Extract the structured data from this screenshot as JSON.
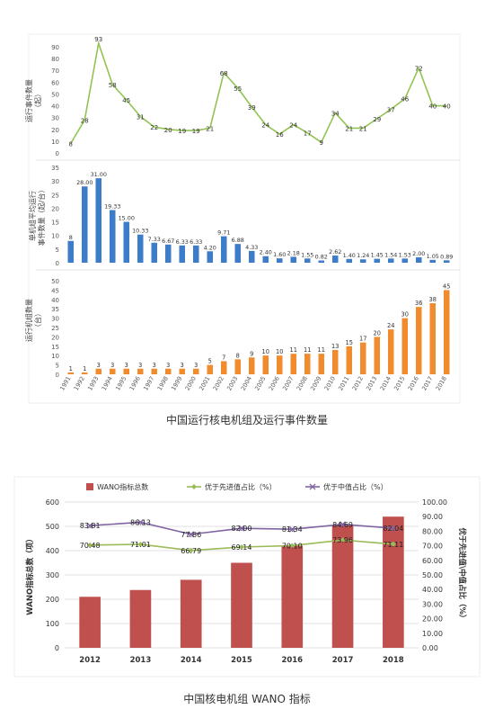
{
  "chart_data": [
    {
      "type": "line",
      "ylabel": "运行事件数量（起）",
      "ylim": [
        0,
        90
      ],
      "yticks": [
        0,
        10,
        20,
        30,
        40,
        50,
        60,
        70,
        80,
        90
      ],
      "x": [
        "1991",
        "1992",
        "1993",
        "1994",
        "1995",
        "1996",
        "1997",
        "1998",
        "1999",
        "2000",
        "2001",
        "2002",
        "2003",
        "2004",
        "2005",
        "2006",
        "2007",
        "2008",
        "2009",
        "2010",
        "2011",
        "2012",
        "2013",
        "2014",
        "2015",
        "2016",
        "2017",
        "2018"
      ],
      "values": [
        8,
        28,
        93,
        58,
        45,
        31,
        22,
        20,
        19,
        19,
        21,
        68,
        55,
        39,
        24,
        16,
        24,
        17,
        9,
        34,
        21,
        21,
        29,
        37,
        46,
        72,
        40,
        40
      ],
      "color": "#92c353",
      "grid": false
    },
    {
      "type": "bar",
      "ylabel": "单机组平均运行事件数量（起/台）",
      "ylim": [
        0,
        35
      ],
      "yticks": [
        0,
        5,
        10,
        15,
        20,
        25,
        30,
        35
      ],
      "x": [
        "1991",
        "1992",
        "1993",
        "1994",
        "1995",
        "1996",
        "1997",
        "1998",
        "1999",
        "2000",
        "2001",
        "2002",
        "2003",
        "2004",
        "2005",
        "2006",
        "2007",
        "2008",
        "2009",
        "2010",
        "2011",
        "2012",
        "2013",
        "2014",
        "2015",
        "2016",
        "2017",
        "2018"
      ],
      "values": [
        8,
        28.0,
        31.0,
        19.33,
        15.0,
        10.33,
        7.33,
        6.67,
        6.33,
        6.33,
        4.2,
        9.71,
        6.88,
        4.33,
        2.4,
        1.6,
        2.18,
        1.55,
        0.82,
        2.62,
        1.4,
        1.24,
        1.45,
        1.54,
        1.53,
        2.0,
        1.05,
        0.89
      ],
      "labels": [
        "8",
        "28.00",
        "31.00",
        "19.33",
        "15.00",
        "10.33",
        "7.33",
        "6.67",
        "6.33",
        "6.33",
        "4.20",
        "9.71",
        "6.88",
        "4.33",
        "2.40",
        "1.60",
        "2.18",
        "1.55",
        "0.82",
        "2.62",
        "1.40",
        "1.24",
        "1.45",
        "1.54",
        "1.53",
        "2.00",
        "1.05",
        "0.89"
      ],
      "color": "#3d7cc9",
      "grid": false
    },
    {
      "type": "bar",
      "ylabel": "运行机组数量（台）",
      "ylim": [
        0,
        50
      ],
      "yticks": [
        0,
        5,
        10,
        15,
        20,
        25,
        30,
        35,
        40,
        45,
        50
      ],
      "x": [
        "1991",
        "1992",
        "1993",
        "1994",
        "1995",
        "1996",
        "1997",
        "1998",
        "1999",
        "2000",
        "2001",
        "2002",
        "2003",
        "2004",
        "2005",
        "2006",
        "2007",
        "2008",
        "2009",
        "2010",
        "2011",
        "2012",
        "2013",
        "2014",
        "2015",
        "2016",
        "2017",
        "2018"
      ],
      "values": [
        1,
        1,
        3,
        3,
        3,
        3,
        3,
        3,
        3,
        3,
        5,
        7,
        8,
        9,
        10,
        10,
        11,
        11,
        11,
        13,
        15,
        17,
        20,
        24,
        30,
        36,
        38,
        45
      ],
      "color": "#f08c2e",
      "grid": false
    },
    {
      "type": "bar+line",
      "categories": [
        "2012",
        "2013",
        "2014",
        "2015",
        "2016",
        "2017",
        "2018"
      ],
      "bar_series": {
        "name": "WANO指标总数",
        "values": [
          210,
          238,
          280,
          350,
          420,
          504,
          540
        ],
        "color": "#c0504d"
      },
      "line_series": [
        {
          "name": "优于先进值占比（%）",
          "values": [
            70.48,
            71.01,
            66.79,
            69.14,
            70.1,
            73.96,
            71.11
          ],
          "labels": [
            "70.48",
            "71.01",
            "66.79",
            "69.14",
            "70.10",
            "73.96",
            "71.11"
          ],
          "color": "#9bbb59"
        },
        {
          "name": "优于中值占比（%）",
          "values": [
            83.81,
            86.13,
            77.86,
            82.0,
            81.34,
            84.69,
            82.04
          ],
          "labels": [
            "83.81",
            "86.13",
            "77.86",
            "82.00",
            "81.34",
            "84.69",
            "82.04"
          ],
          "color": "#8064a2"
        }
      ],
      "ylabel": "WANO指标总数（项）",
      "ylabel_right": "优于先进值\\中值占比（%）",
      "ylim": [
        0,
        600
      ],
      "yticks": [
        "0",
        "100",
        "200",
        "300",
        "400",
        "500",
        "600"
      ],
      "ylim_right": [
        0,
        100
      ],
      "yticks_right": [
        "0.00",
        "10.00",
        "20.00",
        "30.00",
        "40.00",
        "50.00",
        "60.00",
        "70.00",
        "80.00",
        "90.00",
        "100.00"
      ],
      "legend": "top",
      "grid": true
    }
  ],
  "captions": {
    "chart1": "中国运行核电机组及运行事件数量",
    "chart2": "中国核电机组 WANO 指标"
  }
}
